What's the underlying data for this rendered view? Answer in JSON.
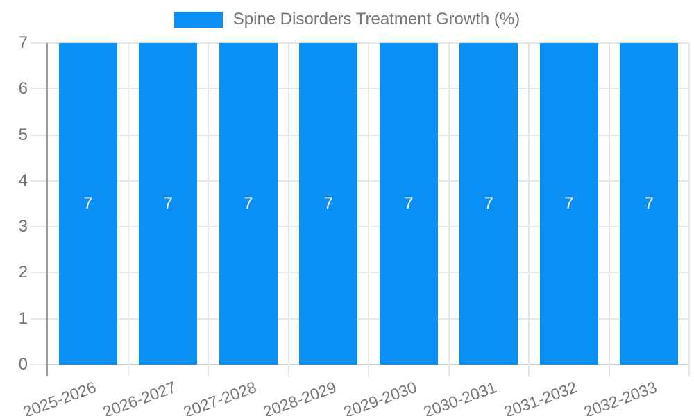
{
  "chart_data": {
    "type": "bar",
    "title": "Spine Disorders Treatment Growth (%)",
    "legend": {
      "position": "top",
      "label": "Spine Disorders Treatment Growth (%)"
    },
    "categories": [
      "2025-2026",
      "2026-2027",
      "2027-2028",
      "2028-2029",
      "2029-2030",
      "2030-2031",
      "2031-2032",
      "2032-2033"
    ],
    "series": [
      {
        "name": "Spine Disorders Treatment Growth (%)",
        "values": [
          7,
          7,
          7,
          7,
          7,
          7,
          7,
          7
        ]
      }
    ],
    "bar_value_labels": [
      "7",
      "7",
      "7",
      "7",
      "7",
      "7",
      "7",
      "7"
    ],
    "xlabel": "",
    "ylabel": "",
    "ylim": [
      0,
      7
    ],
    "yticks": [
      0,
      1,
      2,
      3,
      4,
      5,
      6,
      7
    ],
    "grid": true,
    "colors": {
      "bar": "#0A8FF5",
      "bar_label": "#FFFFFF",
      "axis_text": "#757575",
      "gridline": "#E6E6E6",
      "baseline": "#CCCCCC",
      "axis_line": "#9E9E9E",
      "background": "#FFFFFF"
    }
  }
}
